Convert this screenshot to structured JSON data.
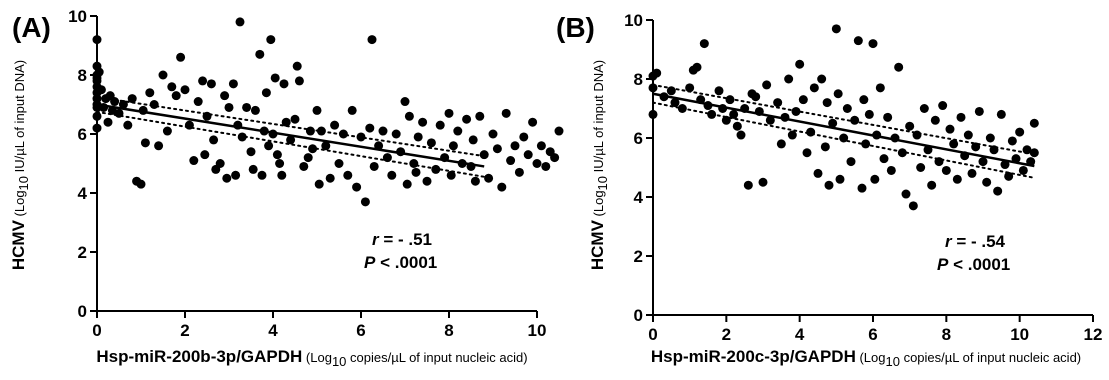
{
  "chart_data": [
    {
      "type": "scatter",
      "panel_letter": "(A)",
      "xlabel_bold": "Hsp-miR-200b-3p/GAPDH",
      "xlabel_rest_pre": " (Log",
      "xlabel_rest_sub": "10",
      "xlabel_rest_post": " copies/µL of input nucleic acid)",
      "ylabel_bold": "HCMV",
      "ylabel_rest_pre": " (Log",
      "ylabel_rest_sub": "10",
      "ylabel_rest_post": " IU/µL of input DNA)",
      "xlim": [
        0,
        10
      ],
      "ylim": [
        0,
        10
      ],
      "xticks": [
        "0",
        "2",
        "4",
        "6",
        "8",
        "10"
      ],
      "yticks": [
        "0",
        "2",
        "4",
        "6",
        "8",
        "10"
      ],
      "stat_r_label": "r",
      "stat_r_value": " = - .51",
      "stat_p_label": "P",
      "stat_p_value": " < .0001",
      "fit_line": {
        "x": [
          0,
          8.8
        ],
        "y": [
          7.0,
          4.9
        ]
      },
      "ci_upper": {
        "x": [
          0,
          8.8
        ],
        "y": [
          7.25,
          5.25
        ]
      },
      "ci_lower": {
        "x": [
          0,
          8.8
        ],
        "y": [
          6.75,
          4.55
        ]
      },
      "points": [
        [
          0,
          9.2
        ],
        [
          0,
          8.3
        ],
        [
          0,
          8.0
        ],
        [
          0,
          7.8
        ],
        [
          0,
          7.6
        ],
        [
          0,
          7.4
        ],
        [
          0,
          7.2
        ],
        [
          0,
          7.0
        ],
        [
          0,
          6.9
        ],
        [
          0,
          6.6
        ],
        [
          0,
          6.2
        ],
        [
          0,
          7.9
        ],
        [
          0.05,
          8.1
        ],
        [
          0.1,
          7.5
        ],
        [
          0.15,
          6.9
        ],
        [
          0.2,
          7.2
        ],
        [
          0.25,
          6.4
        ],
        [
          0.3,
          7.3
        ],
        [
          0.35,
          6.8
        ],
        [
          0.4,
          7.1
        ],
        [
          0.5,
          6.7
        ],
        [
          0.6,
          7.0
        ],
        [
          0.7,
          6.3
        ],
        [
          0.8,
          7.2
        ],
        [
          0.9,
          4.4
        ],
        [
          1.0,
          4.3
        ],
        [
          1.05,
          6.8
        ],
        [
          1.1,
          5.7
        ],
        [
          1.2,
          7.4
        ],
        [
          1.3,
          7.0
        ],
        [
          1.4,
          5.6
        ],
        [
          1.5,
          8.0
        ],
        [
          1.6,
          6.1
        ],
        [
          1.7,
          7.6
        ],
        [
          1.8,
          7.3
        ],
        [
          1.9,
          8.6
        ],
        [
          2.0,
          7.5
        ],
        [
          2.1,
          6.3
        ],
        [
          2.2,
          5.1
        ],
        [
          2.3,
          7.1
        ],
        [
          2.4,
          7.8
        ],
        [
          2.45,
          5.3
        ],
        [
          2.5,
          6.6
        ],
        [
          2.6,
          7.7
        ],
        [
          2.65,
          5.8
        ],
        [
          2.7,
          4.8
        ],
        [
          2.8,
          5.0
        ],
        [
          2.9,
          7.3
        ],
        [
          2.95,
          4.5
        ],
        [
          3.0,
          6.9
        ],
        [
          3.1,
          7.7
        ],
        [
          3.15,
          4.6
        ],
        [
          3.2,
          6.3
        ],
        [
          3.25,
          9.8
        ],
        [
          3.3,
          5.9
        ],
        [
          3.4,
          6.9
        ],
        [
          3.5,
          5.4
        ],
        [
          3.55,
          4.8
        ],
        [
          3.6,
          6.8
        ],
        [
          3.7,
          8.7
        ],
        [
          3.75,
          4.6
        ],
        [
          3.8,
          6.1
        ],
        [
          3.85,
          7.4
        ],
        [
          3.9,
          5.6
        ],
        [
          3.95,
          9.2
        ],
        [
          4.0,
          6.0
        ],
        [
          4.05,
          7.9
        ],
        [
          4.1,
          5.3
        ],
        [
          4.15,
          5.0
        ],
        [
          4.2,
          4.6
        ],
        [
          4.25,
          7.7
        ],
        [
          4.3,
          6.4
        ],
        [
          4.4,
          5.8
        ],
        [
          4.5,
          6.5
        ],
        [
          4.55,
          8.3
        ],
        [
          4.6,
          7.8
        ],
        [
          4.7,
          4.9
        ],
        [
          4.8,
          5.2
        ],
        [
          4.85,
          6.1
        ],
        [
          4.9,
          5.5
        ],
        [
          5.0,
          6.8
        ],
        [
          5.05,
          4.3
        ],
        [
          5.1,
          6.1
        ],
        [
          5.2,
          5.6
        ],
        [
          5.3,
          4.5
        ],
        [
          5.4,
          6.3
        ],
        [
          5.5,
          5.0
        ],
        [
          5.6,
          6.0
        ],
        [
          5.7,
          4.6
        ],
        [
          5.8,
          6.8
        ],
        [
          5.9,
          4.2
        ],
        [
          6.0,
          5.9
        ],
        [
          6.1,
          3.7
        ],
        [
          6.2,
          6.2
        ],
        [
          6.25,
          9.2
        ],
        [
          6.3,
          4.9
        ],
        [
          6.4,
          5.6
        ],
        [
          6.5,
          6.1
        ],
        [
          6.6,
          5.2
        ],
        [
          6.7,
          4.6
        ],
        [
          6.8,
          6.0
        ],
        [
          6.9,
          5.4
        ],
        [
          7.0,
          7.1
        ],
        [
          7.05,
          4.3
        ],
        [
          7.1,
          6.6
        ],
        [
          7.2,
          5.0
        ],
        [
          7.25,
          4.7
        ],
        [
          7.3,
          5.9
        ],
        [
          7.4,
          6.4
        ],
        [
          7.5,
          4.4
        ],
        [
          7.6,
          5.7
        ],
        [
          7.7,
          4.8
        ],
        [
          7.8,
          6.3
        ],
        [
          7.9,
          5.2
        ],
        [
          8.0,
          6.7
        ],
        [
          8.05,
          4.6
        ],
        [
          8.1,
          5.6
        ],
        [
          8.2,
          6.1
        ],
        [
          8.3,
          5.0
        ],
        [
          8.4,
          6.5
        ],
        [
          8.5,
          4.9
        ],
        [
          8.55,
          5.8
        ],
        [
          8.6,
          4.4
        ],
        [
          8.7,
          6.6
        ],
        [
          8.8,
          5.3
        ],
        [
          8.9,
          4.5
        ],
        [
          9.0,
          6.0
        ],
        [
          9.1,
          5.5
        ],
        [
          9.2,
          4.2
        ],
        [
          9.3,
          6.7
        ],
        [
          9.4,
          5.1
        ],
        [
          9.5,
          5.6
        ],
        [
          9.6,
          4.7
        ],
        [
          9.7,
          5.9
        ],
        [
          9.8,
          5.3
        ],
        [
          9.9,
          6.4
        ],
        [
          10.0,
          5.0
        ],
        [
          10.1,
          5.6
        ],
        [
          10.2,
          4.9
        ],
        [
          10.3,
          5.4
        ],
        [
          10.4,
          5.2
        ],
        [
          10.5,
          6.1
        ]
      ]
    },
    {
      "type": "scatter",
      "panel_letter": "(B)",
      "xlabel_bold": "Hsp-miR-200c-3p/GAPDH",
      "xlabel_rest_pre": " (Log",
      "xlabel_rest_sub": "10",
      "xlabel_rest_post": " copies/µL of input nucleic acid)",
      "ylabel_bold": "HCMV",
      "ylabel_rest_pre": " (Log",
      "ylabel_rest_sub": "10",
      "ylabel_rest_post": " IU/µL of input DNA)",
      "xlim": [
        0,
        12
      ],
      "ylim": [
        0,
        10
      ],
      "xticks": [
        "0",
        "2",
        "4",
        "6",
        "8",
        "10",
        "12"
      ],
      "yticks": [
        "0",
        "2",
        "4",
        "6",
        "8",
        "10"
      ],
      "stat_r_label": "r",
      "stat_r_value": " = - .54",
      "stat_p_label": "P",
      "stat_p_value": " < .0001",
      "fit_line": {
        "x": [
          0,
          10.4
        ],
        "y": [
          7.5,
          5.05
        ]
      },
      "ci_upper": {
        "x": [
          0,
          10.4
        ],
        "y": [
          7.8,
          5.45
        ]
      },
      "ci_lower": {
        "x": [
          0,
          10.4
        ],
        "y": [
          7.2,
          4.65
        ]
      },
      "points": [
        [
          0,
          8.1
        ],
        [
          0,
          7.7
        ],
        [
          0,
          6.8
        ],
        [
          0.1,
          8.2
        ],
        [
          0.3,
          7.4
        ],
        [
          0.5,
          7.6
        ],
        [
          0.6,
          7.2
        ],
        [
          0.8,
          7.0
        ],
        [
          1.0,
          7.7
        ],
        [
          1.1,
          8.3
        ],
        [
          1.2,
          8.4
        ],
        [
          1.3,
          7.3
        ],
        [
          1.4,
          9.2
        ],
        [
          1.5,
          7.1
        ],
        [
          1.6,
          6.8
        ],
        [
          1.8,
          7.6
        ],
        [
          1.9,
          7.0
        ],
        [
          2.0,
          6.6
        ],
        [
          2.1,
          7.3
        ],
        [
          2.2,
          6.8
        ],
        [
          2.3,
          6.4
        ],
        [
          2.4,
          6.1
        ],
        [
          2.5,
          7.0
        ],
        [
          2.6,
          4.4
        ],
        [
          2.7,
          7.5
        ],
        [
          2.8,
          7.4
        ],
        [
          2.9,
          6.9
        ],
        [
          3.0,
          4.5
        ],
        [
          3.1,
          7.8
        ],
        [
          3.2,
          6.6
        ],
        [
          3.4,
          7.2
        ],
        [
          3.5,
          5.8
        ],
        [
          3.6,
          6.7
        ],
        [
          3.7,
          8.0
        ],
        [
          3.8,
          6.1
        ],
        [
          3.9,
          6.9
        ],
        [
          4.0,
          8.5
        ],
        [
          4.1,
          7.3
        ],
        [
          4.2,
          5.5
        ],
        [
          4.3,
          6.2
        ],
        [
          4.4,
          7.7
        ],
        [
          4.5,
          4.8
        ],
        [
          4.6,
          8.0
        ],
        [
          4.7,
          5.7
        ],
        [
          4.75,
          7.2
        ],
        [
          4.8,
          4.4
        ],
        [
          4.9,
          6.5
        ],
        [
          5.0,
          9.7
        ],
        [
          5.05,
          7.5
        ],
        [
          5.1,
          4.6
        ],
        [
          5.2,
          6.0
        ],
        [
          5.3,
          7.0
        ],
        [
          5.4,
          5.2
        ],
        [
          5.5,
          6.6
        ],
        [
          5.6,
          9.3
        ],
        [
          5.7,
          4.3
        ],
        [
          5.75,
          7.3
        ],
        [
          5.8,
          5.8
        ],
        [
          5.9,
          6.8
        ],
        [
          6.0,
          9.2
        ],
        [
          6.05,
          4.6
        ],
        [
          6.1,
          6.1
        ],
        [
          6.2,
          7.7
        ],
        [
          6.3,
          5.3
        ],
        [
          6.4,
          6.7
        ],
        [
          6.5,
          4.9
        ],
        [
          6.6,
          6.0
        ],
        [
          6.7,
          8.4
        ],
        [
          6.8,
          5.5
        ],
        [
          6.9,
          4.1
        ],
        [
          7.0,
          6.4
        ],
        [
          7.1,
          3.7
        ],
        [
          7.2,
          6.1
        ],
        [
          7.3,
          5.0
        ],
        [
          7.4,
          7.0
        ],
        [
          7.5,
          5.6
        ],
        [
          7.6,
          4.4
        ],
        [
          7.7,
          6.6
        ],
        [
          7.8,
          5.2
        ],
        [
          7.9,
          7.1
        ],
        [
          8.0,
          4.9
        ],
        [
          8.1,
          6.3
        ],
        [
          8.2,
          5.8
        ],
        [
          8.3,
          4.6
        ],
        [
          8.4,
          6.7
        ],
        [
          8.5,
          5.4
        ],
        [
          8.6,
          6.1
        ],
        [
          8.7,
          4.8
        ],
        [
          8.8,
          5.7
        ],
        [
          8.9,
          6.9
        ],
        [
          9.0,
          5.2
        ],
        [
          9.1,
          4.5
        ],
        [
          9.2,
          6.0
        ],
        [
          9.3,
          5.6
        ],
        [
          9.4,
          4.2
        ],
        [
          9.5,
          6.8
        ],
        [
          9.6,
          5.1
        ],
        [
          9.7,
          4.7
        ],
        [
          9.8,
          5.9
        ],
        [
          9.9,
          5.3
        ],
        [
          10.0,
          6.2
        ],
        [
          10.1,
          4.9
        ],
        [
          10.2,
          5.6
        ],
        [
          10.3,
          5.2
        ],
        [
          10.4,
          6.5
        ],
        [
          10.4,
          5.5
        ]
      ]
    }
  ]
}
